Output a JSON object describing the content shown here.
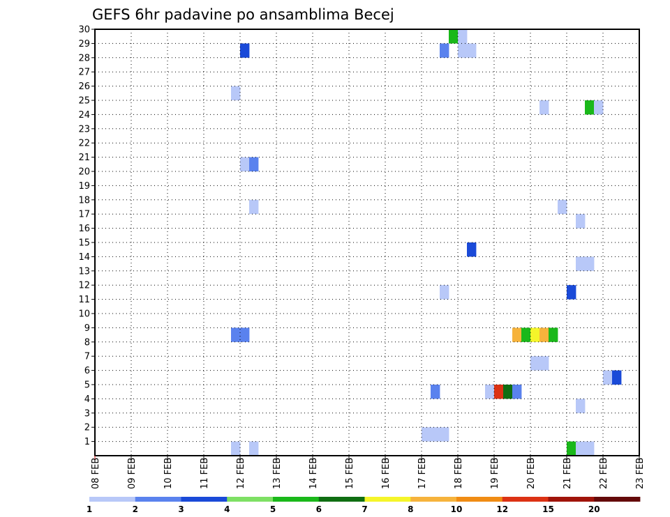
{
  "chart_data": {
    "type": "heatmap",
    "title": "GEFS 6hr padavine po ansamblima Becej",
    "x_ticks": [
      "08 FEB",
      "09 FEB",
      "10 FEB",
      "11 FEB",
      "12 FEB",
      "13 FEB",
      "14 FEB",
      "15 FEB",
      "16 FEB",
      "17 FEB",
      "18 FEB",
      "19 FEB",
      "20 FEB",
      "21 FEB",
      "22 FEB",
      "23 FEB"
    ],
    "xlim": [
      "08 FEB 00Z",
      "23 FEB 00Z"
    ],
    "y_ticks": [
      "1",
      "2",
      "3",
      "4",
      "5",
      "6",
      "7",
      "8",
      "9",
      "10",
      "11",
      "12",
      "13",
      "14",
      "15",
      "16",
      "17",
      "18",
      "19",
      "20",
      "21",
      "22",
      "23",
      "24",
      "25",
      "26",
      "27",
      "28",
      "29",
      "30"
    ],
    "ylim": [
      0,
      30
    ],
    "grid": true,
    "colorbar": {
      "labels": [
        "1",
        "2",
        "3",
        "4",
        "5",
        "6",
        "7",
        "8",
        "10",
        "12",
        "15",
        "20"
      ],
      "colors": [
        "#b8c8f8",
        "#5a82ee",
        "#1a4ad8",
        "#7ee064",
        "#1ab81a",
        "#0f6e12",
        "#f5f52a",
        "#f6b33c",
        "#f08c14",
        "#dc3214",
        "#a0140a",
        "#640a0a"
      ]
    },
    "cells": [
      {
        "member": 30,
        "time": "17 FEB 18Z",
        "color": "#1ab81a"
      },
      {
        "member": 30,
        "time": "18 FEB 00Z",
        "color": "#b8c8f8"
      },
      {
        "member": 29,
        "time": "12 FEB 00Z",
        "color": "#1a4ad8"
      },
      {
        "member": 29,
        "time": "17 FEB 12Z",
        "color": "#5a82ee"
      },
      {
        "member": 29,
        "time": "18 FEB 00Z",
        "color": "#b8c8f8"
      },
      {
        "member": 29,
        "time": "18 FEB 06Z",
        "color": "#b8c8f8"
      },
      {
        "member": 26,
        "time": "11 FEB 18Z",
        "color": "#b8c8f8"
      },
      {
        "member": 25,
        "time": "20 FEB 06Z",
        "color": "#b8c8f8"
      },
      {
        "member": 25,
        "time": "21 FEB 12Z",
        "color": "#1ab81a"
      },
      {
        "member": 25,
        "time": "21 FEB 18Z",
        "color": "#b8c8f8"
      },
      {
        "member": 21,
        "time": "12 FEB 00Z",
        "color": "#b8c8f8"
      },
      {
        "member": 21,
        "time": "12 FEB 06Z",
        "color": "#5a82ee"
      },
      {
        "member": 18,
        "time": "12 FEB 06Z",
        "color": "#b8c8f8"
      },
      {
        "member": 18,
        "time": "20 FEB 18Z",
        "color": "#b8c8f8"
      },
      {
        "member": 17,
        "time": "21 FEB 06Z",
        "color": "#b8c8f8"
      },
      {
        "member": 15,
        "time": "18 FEB 06Z",
        "color": "#1a4ad8"
      },
      {
        "member": 14,
        "time": "21 FEB 06Z",
        "color": "#b8c8f8"
      },
      {
        "member": 14,
        "time": "21 FEB 12Z",
        "color": "#b8c8f8"
      },
      {
        "member": 12,
        "time": "17 FEB 12Z",
        "color": "#b8c8f8"
      },
      {
        "member": 12,
        "time": "21 FEB 00Z",
        "color": "#1a4ad8"
      },
      {
        "member": 9,
        "time": "11 FEB 18Z",
        "color": "#5a82ee"
      },
      {
        "member": 9,
        "time": "12 FEB 00Z",
        "color": "#5a82ee"
      },
      {
        "member": 9,
        "time": "19 FEB 12Z",
        "color": "#f6b33c"
      },
      {
        "member": 9,
        "time": "19 FEB 18Z",
        "color": "#1ab81a"
      },
      {
        "member": 9,
        "time": "20 FEB 00Z",
        "color": "#f5f52a"
      },
      {
        "member": 9,
        "time": "20 FEB 06Z",
        "color": "#f6b33c"
      },
      {
        "member": 9,
        "time": "20 FEB 12Z",
        "color": "#1ab81a"
      },
      {
        "member": 7,
        "time": "20 FEB 00Z",
        "color": "#b8c8f8"
      },
      {
        "member": 7,
        "time": "20 FEB 06Z",
        "color": "#b8c8f8"
      },
      {
        "member": 6,
        "time": "22 FEB 00Z",
        "color": "#b8c8f8"
      },
      {
        "member": 6,
        "time": "22 FEB 06Z",
        "color": "#1a4ad8"
      },
      {
        "member": 5,
        "time": "17 FEB 06Z",
        "color": "#5a82ee"
      },
      {
        "member": 5,
        "time": "18 FEB 18Z",
        "color": "#b8c8f8"
      },
      {
        "member": 5,
        "time": "19 FEB 00Z",
        "color": "#dc3214"
      },
      {
        "member": 5,
        "time": "19 FEB 06Z",
        "color": "#0f6e12"
      },
      {
        "member": 5,
        "time": "19 FEB 12Z",
        "color": "#5a82ee"
      },
      {
        "member": 4,
        "time": "21 FEB 06Z",
        "color": "#b8c8f8"
      },
      {
        "member": 2,
        "time": "17 FEB 00Z",
        "color": "#b8c8f8"
      },
      {
        "member": 2,
        "time": "17 FEB 06Z",
        "color": "#b8c8f8"
      },
      {
        "member": 2,
        "time": "17 FEB 12Z",
        "color": "#b8c8f8"
      },
      {
        "member": 1,
        "time": "11 FEB 18Z",
        "color": "#b8c8f8"
      },
      {
        "member": 1,
        "time": "12 FEB 06Z",
        "color": "#b8c8f8"
      },
      {
        "member": 1,
        "time": "21 FEB 00Z",
        "color": "#1ab81a"
      },
      {
        "member": 1,
        "time": "21 FEB 06Z",
        "color": "#b8c8f8"
      },
      {
        "member": 1,
        "time": "21 FEB 12Z",
        "color": "#b8c8f8"
      }
    ]
  }
}
